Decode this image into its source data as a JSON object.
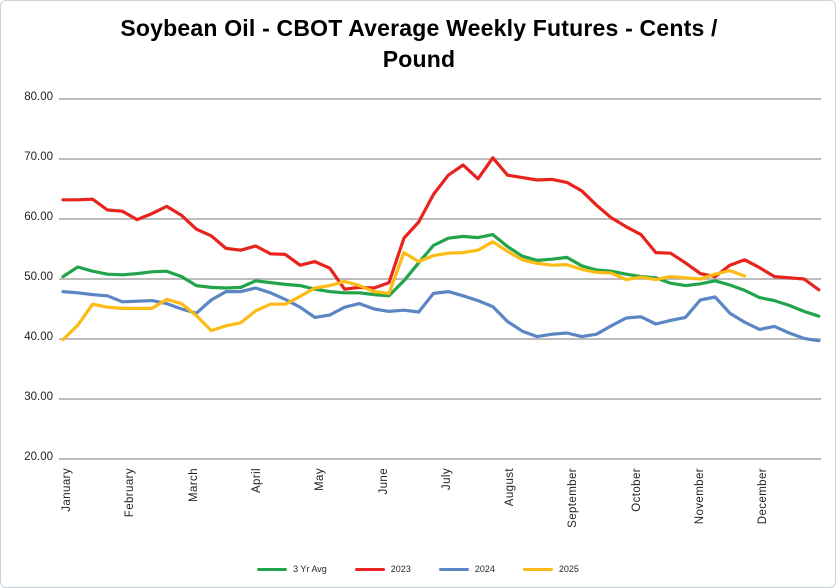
{
  "title": "Soybean Oil - CBOT Average Weekly Futures - Cents / Pound",
  "chart_data": {
    "type": "line",
    "title": "Soybean Oil - CBOT Average Weekly Futures - Cents / Pound",
    "x_unit": "week",
    "categories": [
      "January",
      "February",
      "March",
      "April",
      "May",
      "June",
      "July",
      "August",
      "September",
      "October",
      "November",
      "December"
    ],
    "y_axis": {
      "min": 20,
      "max": 80,
      "step": 10,
      "tick_values": [
        80,
        70,
        60,
        50,
        40,
        30,
        20
      ],
      "tick_labels": [
        "80.00",
        "70.00",
        "60.00",
        "50.00",
        "40.00",
        "30.00",
        "20.00"
      ]
    },
    "grid": true,
    "legend_position": "bottom",
    "style": {
      "grid_color": "#A6A6A6",
      "text_color": "#1F1F1F"
    },
    "series": [
      {
        "name": "3 Yr Avg",
        "color": "#22A44B",
        "values": [
          50.4,
          52.0,
          51.3,
          50.8,
          50.7,
          50.9,
          51.2,
          51.3,
          50.4,
          48.9,
          48.6,
          48.5,
          48.6,
          49.7,
          49.4,
          49.1,
          48.9,
          48.3,
          47.9,
          47.7,
          47.7,
          47.4,
          47.2,
          49.7,
          52.7,
          55.6,
          56.8,
          57.1,
          56.9,
          57.4,
          55.4,
          53.8,
          53.1,
          53.3,
          53.6,
          52.2,
          51.5,
          51.3,
          50.8,
          50.4,
          50.2,
          49.3,
          48.9,
          49.2,
          49.7,
          49.0,
          48.1,
          46.9,
          46.4,
          45.6,
          44.6,
          43.8
        ]
      },
      {
        "name": "2023",
        "color": "#E8231E",
        "values": [
          63.2,
          63.2,
          63.3,
          61.5,
          61.3,
          59.9,
          60.9,
          62.1,
          60.6,
          58.3,
          57.2,
          55.1,
          54.8,
          55.5,
          54.2,
          54.1,
          52.3,
          52.9,
          51.8,
          48.3,
          48.6,
          48.5,
          49.4,
          56.8,
          59.5,
          64.1,
          67.3,
          69.0,
          66.7,
          70.2,
          67.3,
          66.9,
          66.5,
          66.6,
          66.1,
          64.7,
          62.3,
          60.2,
          58.7,
          57.4,
          54.4,
          54.3,
          52.7,
          50.9,
          50.4,
          52.3,
          53.2,
          51.9,
          50.4,
          50.2,
          50.0,
          48.2
        ]
      },
      {
        "name": "2024",
        "color": "#5B86C3",
        "values": [
          47.9,
          47.7,
          47.4,
          47.2,
          46.2,
          46.3,
          46.4,
          45.9,
          45.0,
          44.3,
          46.5,
          47.9,
          47.9,
          48.5,
          47.7,
          46.6,
          45.3,
          43.6,
          44.0,
          45.3,
          45.9,
          45.0,
          44.6,
          44.8,
          44.5,
          47.6,
          47.9,
          47.2,
          46.4,
          45.4,
          42.9,
          41.3,
          40.4,
          40.8,
          41.0,
          40.4,
          40.8,
          42.2,
          43.5,
          43.7,
          42.5,
          43.1,
          43.6,
          46.5,
          47.0,
          44.3,
          42.8,
          41.6,
          42.1,
          41.0,
          40.1,
          39.7
        ]
      },
      {
        "name": "2025",
        "color": "#FDBB15",
        "values": [
          39.9,
          42.3,
          45.8,
          45.3,
          45.1,
          45.1,
          45.1,
          46.6,
          45.9,
          43.9,
          41.4,
          42.2,
          42.7,
          44.7,
          45.8,
          45.8,
          47.1,
          48.5,
          48.9,
          49.6,
          48.9,
          47.9,
          47.6,
          54.4,
          52.9,
          53.9,
          54.3,
          54.4,
          54.8,
          56.2,
          54.6,
          53.2,
          52.6,
          52.3,
          52.4,
          51.6,
          51.1,
          51.0,
          49.9,
          50.3,
          49.9,
          50.4,
          50.2,
          50.0,
          50.8,
          51.4,
          50.5
        ]
      }
    ]
  }
}
